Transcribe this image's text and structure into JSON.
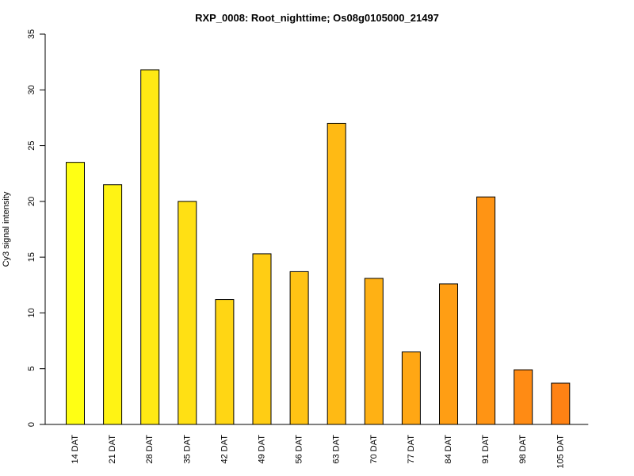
{
  "chart_data": {
    "type": "bar",
    "title": "RXP_0008: Root_nighttime; Os08g0105000_21497",
    "xlabel": "",
    "ylabel": "Cy3 signal intensity",
    "categories": [
      "14 DAT",
      "21 DAT",
      "28 DAT",
      "35 DAT",
      "42 DAT",
      "49 DAT",
      "56 DAT",
      "63 DAT",
      "70 DAT",
      "77 DAT",
      "84 DAT",
      "91 DAT",
      "98 DAT",
      "105 DAT"
    ],
    "values": [
      23.5,
      21.5,
      31.8,
      20.0,
      11.2,
      15.3,
      13.7,
      27.0,
      13.1,
      6.5,
      12.6,
      20.4,
      4.9,
      3.7
    ],
    "colors": [
      "#ffff14",
      "#fff314",
      "#ffe914",
      "#ffe014",
      "#ffd614",
      "#ffcd14",
      "#ffc314",
      "#ffba14",
      "#ffb114",
      "#ffa714",
      "#ff9e14",
      "#ff9414",
      "#ff8b14",
      "#ff8214"
    ],
    "ylim": [
      0,
      35
    ],
    "yticks": [
      "0",
      "5",
      "10",
      "15",
      "20",
      "25",
      "30",
      "35"
    ],
    "grid": false,
    "legend": "none"
  }
}
